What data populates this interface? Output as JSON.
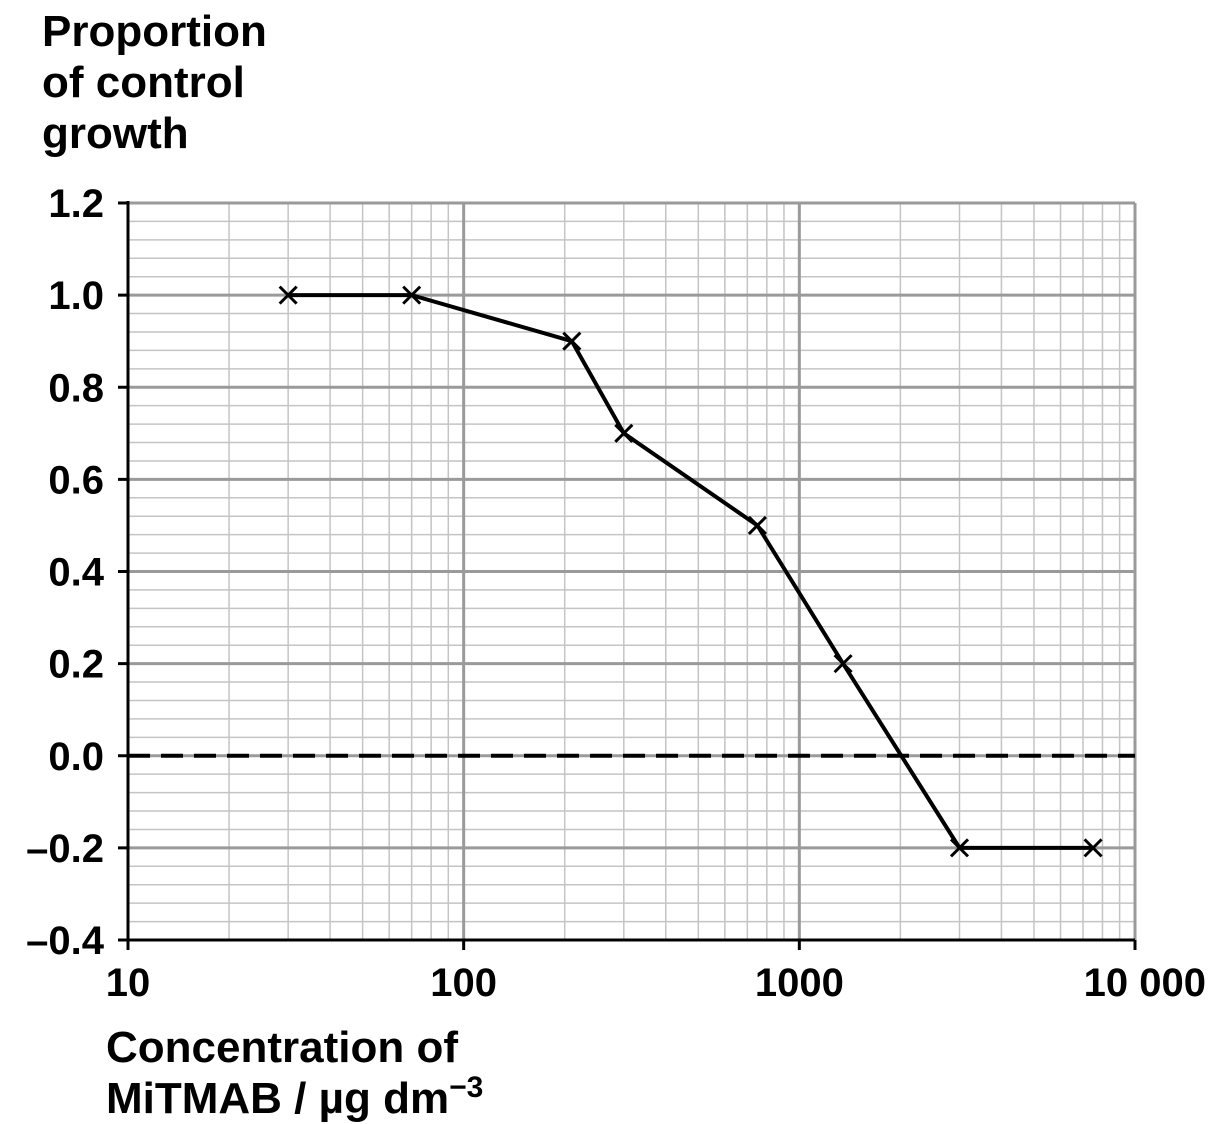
{
  "chart_data": {
    "type": "line",
    "ylabel_lines": [
      "Proportion",
      "of control",
      "growth"
    ],
    "xlabel_line1": "Concentration of",
    "xlabel_line2_main": "MiTMAB / µg dm",
    "xlabel_line2_sup": "−3",
    "x_scale": "log",
    "xlim": [
      10,
      10000
    ],
    "ylim": [
      -0.4,
      1.2
    ],
    "x_tick_labels": [
      {
        "value": 10,
        "label": "10"
      },
      {
        "value": 100,
        "label": "100"
      },
      {
        "value": 1000,
        "label": "1000"
      },
      {
        "value": 10000,
        "label": "10 000"
      }
    ],
    "y_tick_labels": [
      {
        "value": 1.2,
        "label": "1.2"
      },
      {
        "value": 1.0,
        "label": "1.0"
      },
      {
        "value": 0.8,
        "label": "0.8"
      },
      {
        "value": 0.6,
        "label": "0.6"
      },
      {
        "value": 0.4,
        "label": "0.4"
      },
      {
        "value": 0.2,
        "label": "0.2"
      },
      {
        "value": 0.0,
        "label": "0.0"
      },
      {
        "value": -0.2,
        "label": "–0.2"
      },
      {
        "value": -0.4,
        "label": "–0.4"
      }
    ],
    "grid": true,
    "reference_line": {
      "y": 0.0,
      "style": "dashed"
    },
    "marker": "x",
    "series": [
      {
        "points": [
          {
            "x": 30,
            "y": 1.0
          },
          {
            "x": 70,
            "y": 1.0
          },
          {
            "x": 210,
            "y": 0.9
          },
          {
            "x": 300,
            "y": 0.7
          },
          {
            "x": 750,
            "y": 0.5
          },
          {
            "x": 1350,
            "y": 0.2
          },
          {
            "x": 3000,
            "y": -0.2
          },
          {
            "x": 7500,
            "y": -0.2
          }
        ]
      }
    ]
  },
  "colors": {
    "line": "#000000",
    "major_grid": "#9a9a9a",
    "minor_grid": "#c4c4c4",
    "axis": "#000000"
  }
}
